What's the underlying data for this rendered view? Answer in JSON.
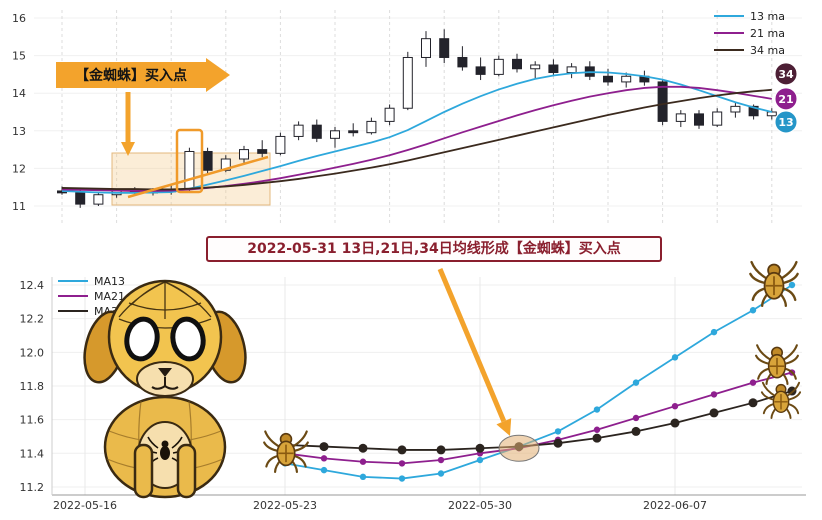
{
  "ui": {
    "top_annotation": "【金蜘蛛】买入点",
    "bottom_annotation": "2022-05-31 13日,21日,34日均线形成【金蜘蛛】买入点"
  },
  "colors": {
    "accent_orange": "#f3a32c",
    "annotation_red": "#8a1f2e",
    "candle_down": "#23232b",
    "highlight_fill": "rgba(225,175,115,0.55)",
    "shade_fill": "rgba(243,203,140,0.35)"
  },
  "chart_data": [
    {
      "type": "candlestick",
      "ylim": [
        10.8,
        16.2
      ],
      "y_ticks": [
        16,
        15,
        14,
        13,
        12,
        11
      ],
      "grid": true,
      "legend_position": "top-right",
      "candles": [
        [
          11.4,
          11.52,
          11.3,
          11.35
        ],
        [
          11.35,
          11.42,
          10.95,
          11.05
        ],
        [
          11.05,
          11.35,
          11.0,
          11.3
        ],
        [
          11.3,
          11.45,
          11.22,
          11.4
        ],
        [
          11.4,
          11.5,
          11.3,
          11.35
        ],
        [
          11.35,
          11.48,
          11.28,
          11.45
        ],
        [
          11.45,
          11.55,
          11.3,
          11.38
        ],
        [
          11.45,
          12.55,
          11.4,
          12.45
        ],
        [
          12.45,
          12.55,
          11.85,
          11.95
        ],
        [
          11.95,
          12.35,
          11.9,
          12.25
        ],
        [
          12.25,
          12.6,
          12.1,
          12.5
        ],
        [
          12.5,
          12.75,
          12.3,
          12.4
        ],
        [
          12.4,
          12.95,
          12.35,
          12.85
        ],
        [
          12.85,
          13.25,
          12.75,
          13.15
        ],
        [
          13.15,
          13.3,
          12.7,
          12.8
        ],
        [
          12.8,
          13.1,
          12.55,
          13.0
        ],
        [
          13.0,
          13.2,
          12.85,
          12.95
        ],
        [
          12.95,
          13.35,
          12.9,
          13.25
        ],
        [
          13.25,
          13.7,
          13.15,
          13.6
        ],
        [
          13.6,
          15.1,
          13.55,
          14.95
        ],
        [
          14.95,
          15.65,
          14.7,
          15.45
        ],
        [
          15.45,
          15.7,
          14.8,
          14.95
        ],
        [
          14.95,
          15.25,
          14.6,
          14.7
        ],
        [
          14.7,
          14.95,
          14.35,
          14.5
        ],
        [
          14.5,
          15.0,
          14.45,
          14.9
        ],
        [
          14.9,
          15.05,
          14.55,
          14.65
        ],
        [
          14.65,
          14.85,
          14.4,
          14.75
        ],
        [
          14.75,
          14.9,
          14.45,
          14.55
        ],
        [
          14.55,
          14.8,
          14.4,
          14.7
        ],
        [
          14.7,
          14.85,
          14.35,
          14.45
        ],
        [
          14.45,
          14.65,
          14.2,
          14.3
        ],
        [
          14.3,
          14.55,
          14.15,
          14.45
        ],
        [
          14.45,
          14.6,
          14.2,
          14.3
        ],
        [
          14.3,
          14.35,
          13.15,
          13.25
        ],
        [
          13.25,
          13.55,
          13.1,
          13.45
        ],
        [
          13.45,
          13.55,
          13.05,
          13.15
        ],
        [
          13.15,
          13.6,
          13.1,
          13.5
        ],
        [
          13.5,
          13.75,
          13.35,
          13.65
        ],
        [
          13.65,
          13.7,
          13.3,
          13.4
        ],
        [
          13.4,
          13.6,
          13.3,
          13.5
        ]
      ],
      "series": [
        {
          "name": "13 ma",
          "color": "#2ea8dc",
          "values": [
            11.4,
            11.38,
            11.36,
            11.35,
            11.35,
            11.36,
            11.37,
            11.46,
            11.57,
            11.68,
            11.8,
            11.93,
            12.06,
            12.2,
            12.33,
            12.45,
            12.57,
            12.69,
            12.83,
            13.02,
            13.26,
            13.5,
            13.72,
            13.92,
            14.1,
            14.25,
            14.38,
            14.47,
            14.53,
            14.56,
            14.55,
            14.51,
            14.45,
            14.36,
            14.23,
            14.08,
            13.92,
            13.76,
            13.62,
            13.5
          ]
        },
        {
          "name": "21 ma",
          "color": "#8e1f8e",
          "values": [
            11.44,
            11.43,
            11.42,
            11.41,
            11.4,
            11.4,
            11.41,
            11.44,
            11.48,
            11.53,
            11.59,
            11.66,
            11.74,
            11.83,
            11.92,
            12.02,
            12.12,
            12.23,
            12.35,
            12.49,
            12.64,
            12.8,
            12.96,
            13.11,
            13.26,
            13.41,
            13.55,
            13.68,
            13.8,
            13.91,
            14.0,
            14.08,
            14.14,
            14.17,
            14.17,
            14.14,
            14.08,
            14.01,
            13.93,
            13.85
          ]
        },
        {
          "name": "34 ma",
          "color": "#3b2a1e",
          "values": [
            11.48,
            11.47,
            11.46,
            11.45,
            11.45,
            11.44,
            11.44,
            11.46,
            11.49,
            11.52,
            11.56,
            11.61,
            11.66,
            11.72,
            11.79,
            11.86,
            11.94,
            12.02,
            12.11,
            12.21,
            12.32,
            12.43,
            12.54,
            12.65,
            12.76,
            12.87,
            12.98,
            13.09,
            13.2,
            13.31,
            13.42,
            13.52,
            13.62,
            13.71,
            13.79,
            13.87,
            13.94,
            14.0,
            14.05,
            14.09
          ]
        }
      ],
      "badges": [
        {
          "label": "34",
          "color": "#4d1f35",
          "dy": -16
        },
        {
          "label": "21",
          "color": "#8e1f8e",
          "dy": 0
        },
        {
          "label": "13",
          "color": "#2596c8",
          "dy": 10
        }
      ]
    },
    {
      "type": "line",
      "x": [
        "2022-05-23",
        "2022-05-24",
        "2022-05-25",
        "2022-05-26",
        "2022-05-27",
        "2022-05-30",
        "2022-05-31",
        "2022-06-01",
        "2022-06-02",
        "2022-06-06",
        "2022-06-07",
        "2022-06-08",
        "2022-06-09",
        "2022-06-10"
      ],
      "x_tick_labels": [
        "2022-05-16",
        "2022-05-23",
        "2022-05-30",
        "2022-06-07"
      ],
      "y_ticks": [
        12.4,
        12.2,
        12.0,
        11.8,
        11.6,
        11.4,
        11.2
      ],
      "ylim": [
        11.15,
        12.45
      ],
      "grid": true,
      "legend_position": "top-left",
      "series": [
        {
          "name": "MA13",
          "color": "#2ea8dc",
          "values": [
            11.34,
            11.3,
            11.26,
            11.25,
            11.28,
            11.36,
            11.44,
            11.53,
            11.66,
            11.82,
            11.97,
            12.12,
            12.25,
            12.4
          ]
        },
        {
          "name": "MA21",
          "color": "#8e1f8e",
          "values": [
            11.4,
            11.37,
            11.35,
            11.34,
            11.36,
            11.4,
            11.43,
            11.48,
            11.54,
            11.61,
            11.68,
            11.75,
            11.82,
            11.88
          ]
        },
        {
          "name": "MA34",
          "color": "#2b241f",
          "values": [
            11.45,
            11.44,
            11.43,
            11.42,
            11.42,
            11.43,
            11.44,
            11.46,
            11.49,
            11.53,
            11.58,
            11.64,
            11.7,
            11.77
          ]
        }
      ],
      "highlight": {
        "x": "2022-05-31",
        "value": 11.43
      }
    }
  ]
}
